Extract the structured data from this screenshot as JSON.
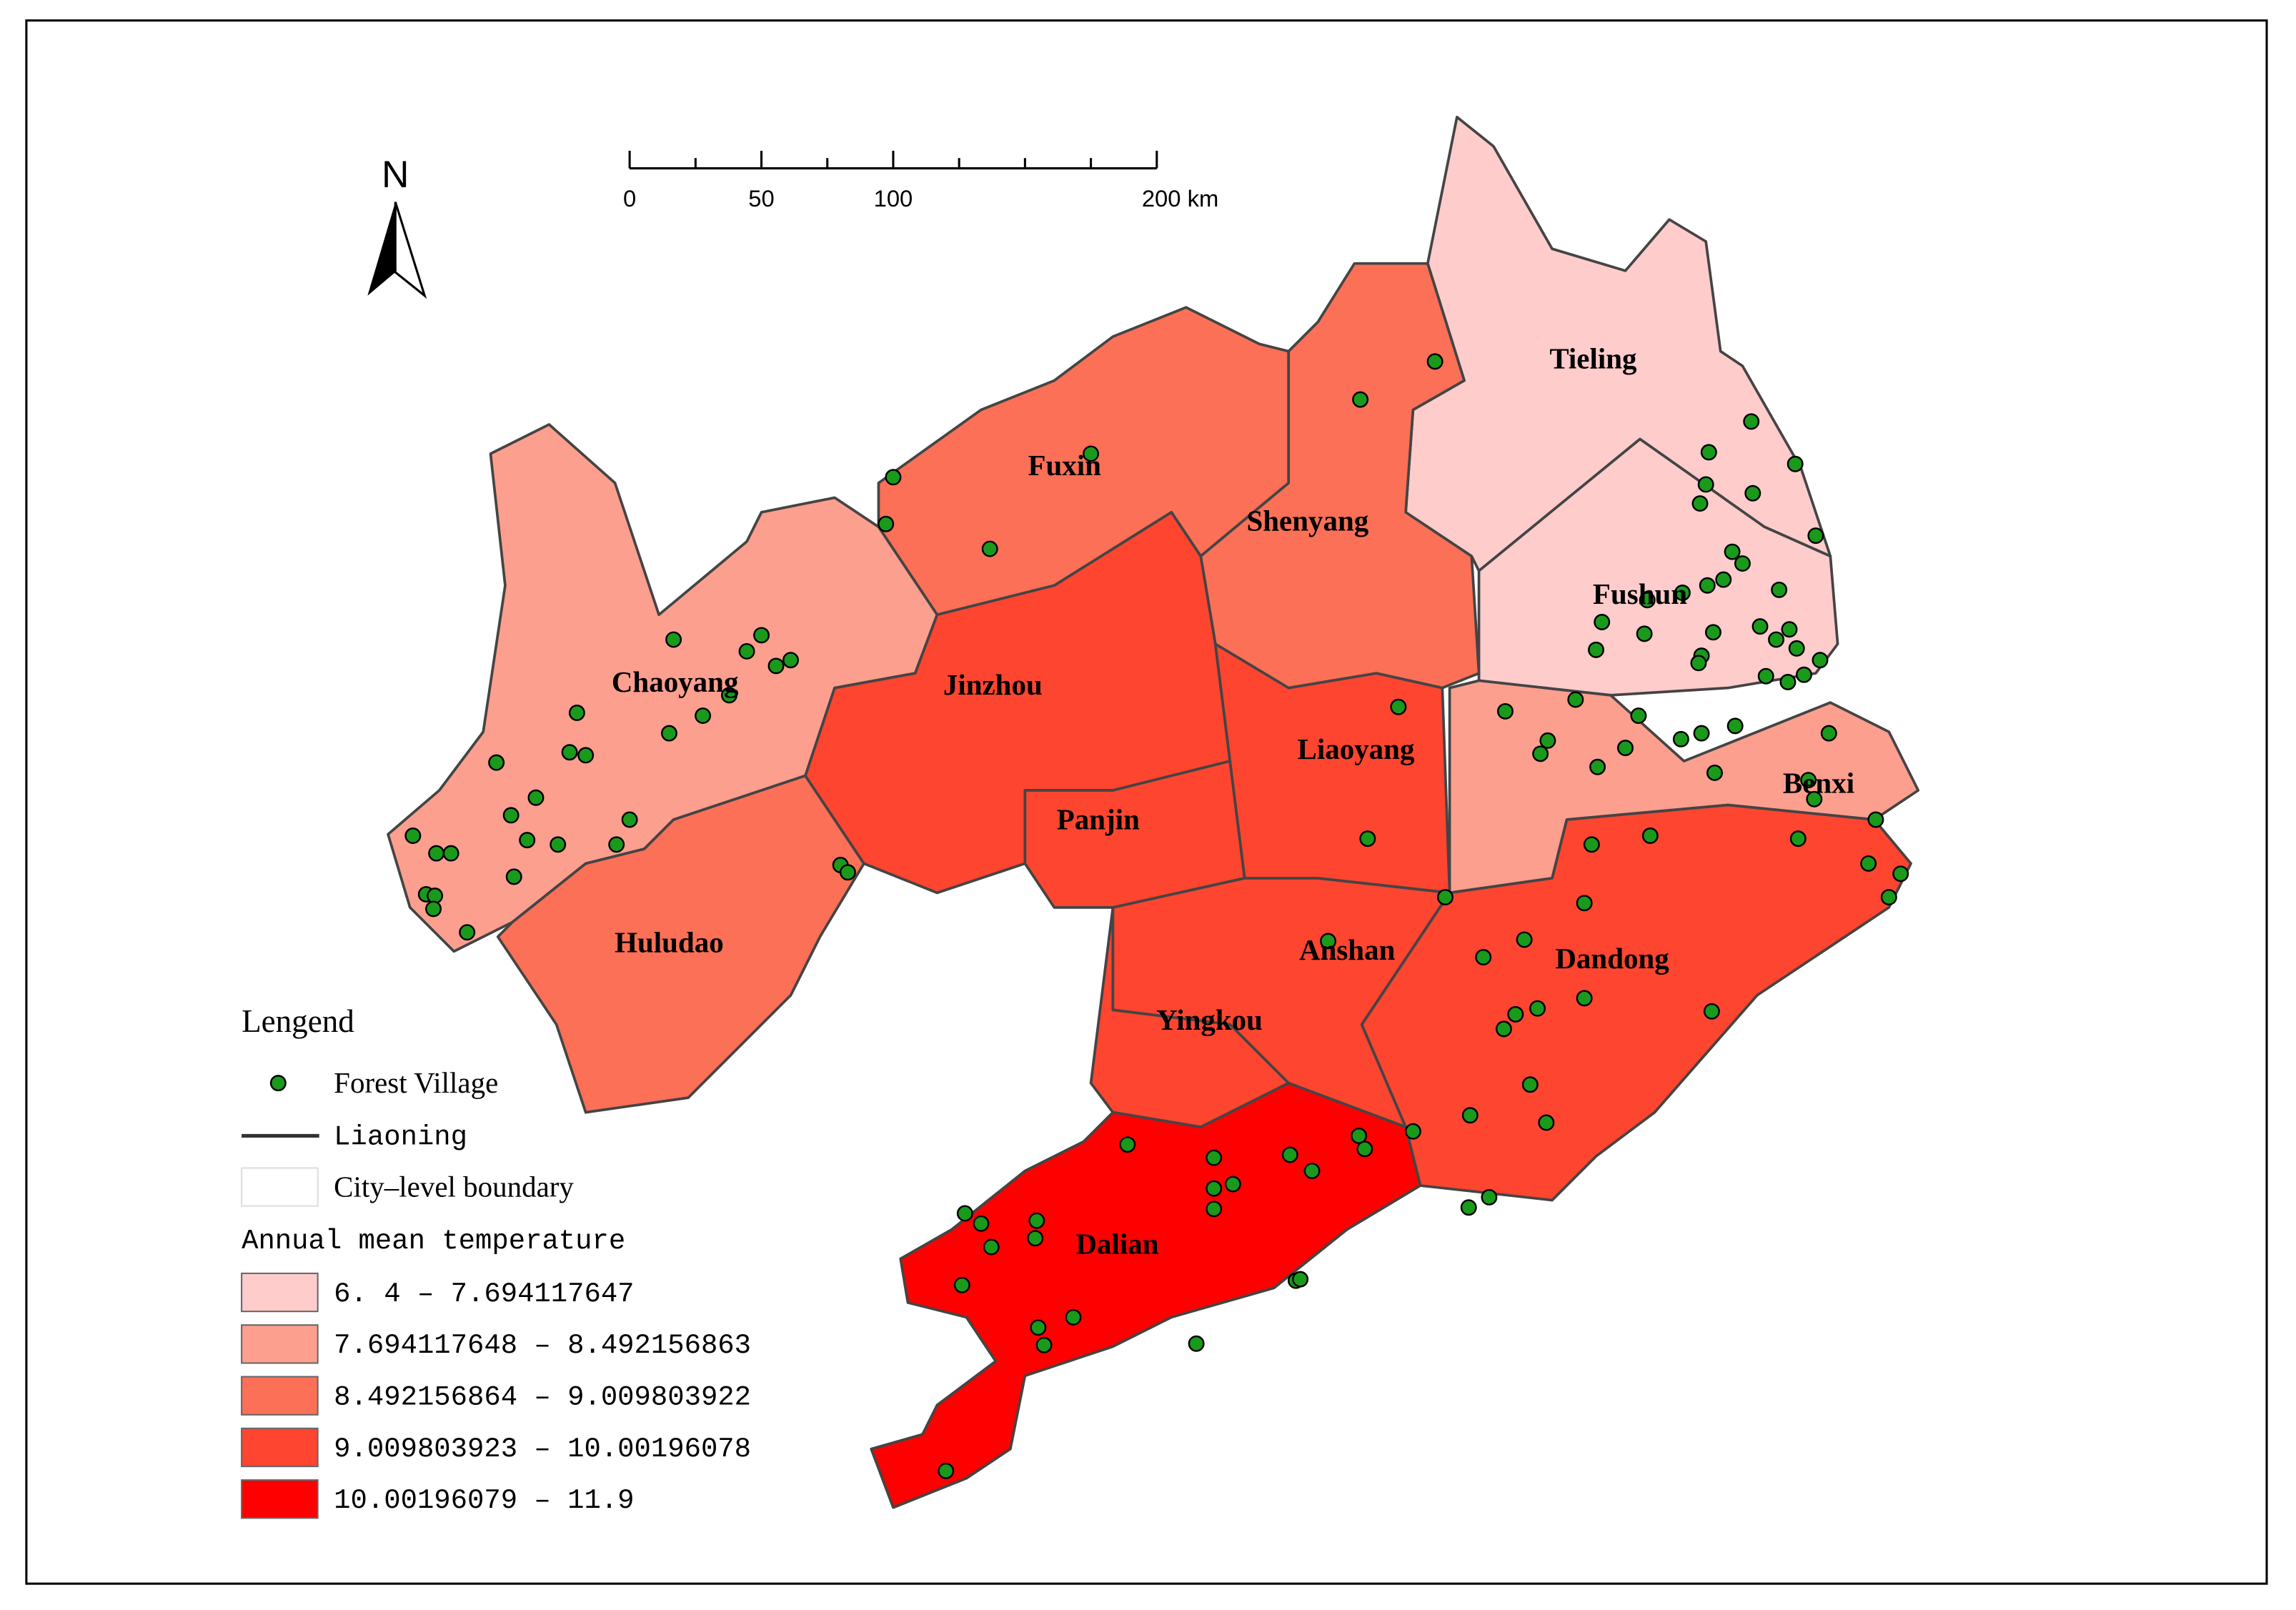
{
  "north": "N",
  "scale_bar": {
    "labels": [
      "0",
      "50",
      "100",
      "200 km"
    ]
  },
  "legend": {
    "title": "Lengend",
    "village": "Forest Village",
    "province": "Liaoning",
    "boundary": "City–level boundary",
    "temperature_title": "Annual mean temperature",
    "classes": [
      {
        "label": "6. 4 – 7.694117647",
        "color": "#ffcccc"
      },
      {
        "label": "7.694117648 – 8.492156863",
        "color": "#fc9f8e"
      },
      {
        "label": "8.492156864 – 9.009803922",
        "color": "#fb7057"
      },
      {
        "label": "9.009803923 – 10.00196078",
        "color": "#fd4530"
      },
      {
        "label": "10.00196079 – 11.9",
        "color": "#fe0000"
      }
    ]
  },
  "cities": [
    {
      "label": "Tieling",
      "color": "#ffcccc"
    },
    {
      "label": "Fushun",
      "color": "#ffcccc"
    },
    {
      "label": "Fuxin",
      "color": "#fb7057"
    },
    {
      "label": "Shenyang",
      "color": "#fb7057"
    },
    {
      "label": "Chaoyang",
      "color": "#fc9f8e"
    },
    {
      "label": "Benxi",
      "color": "#fc9f8e"
    },
    {
      "label": "Huludao",
      "color": "#fb7057"
    },
    {
      "label": "Jinzhou",
      "color": "#fd4530"
    },
    {
      "label": "Panjin",
      "color": "#fd4530"
    },
    {
      "label": "Liaoyang",
      "color": "#fd4530"
    },
    {
      "label": "Anshan",
      "color": "#fd4530"
    },
    {
      "label": "Yingkou",
      "color": "#fd4530"
    },
    {
      "label": "Dandong",
      "color": "#fd4530"
    },
    {
      "label": "Dalian",
      "color": "#fe0000"
    }
  ]
}
